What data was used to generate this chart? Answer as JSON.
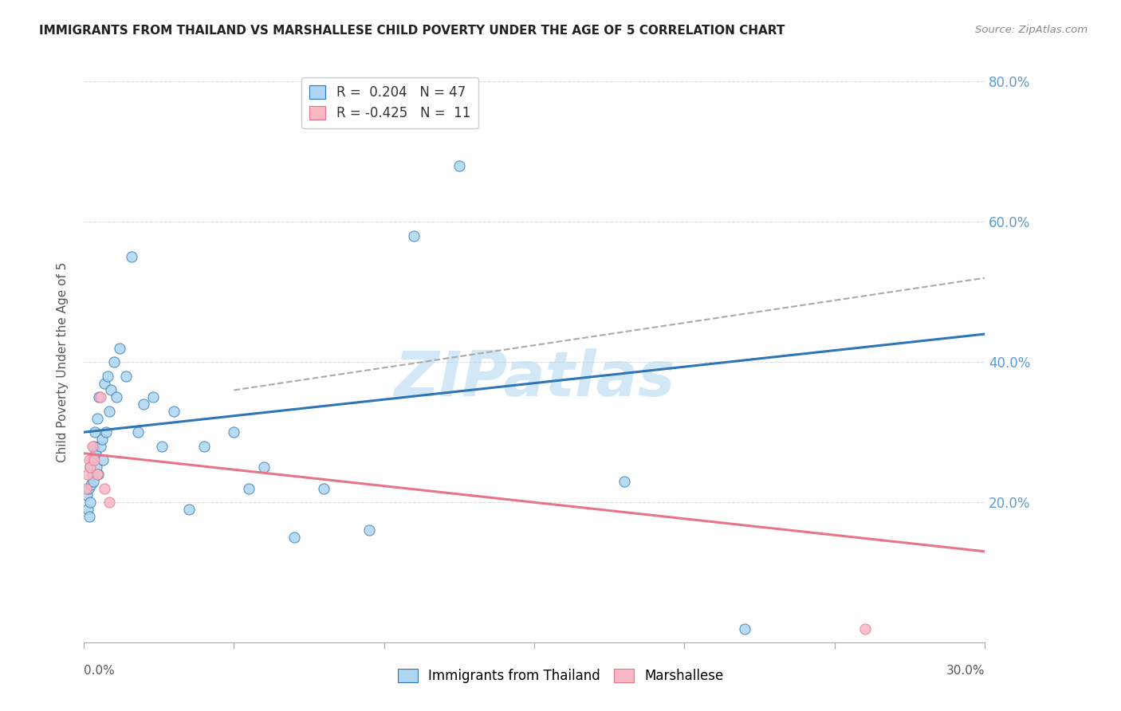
{
  "title": "IMMIGRANTS FROM THAILAND VS MARSHALLESE CHILD POVERTY UNDER THE AGE OF 5 CORRELATION CHART",
  "source": "Source: ZipAtlas.com",
  "ylabel": "Child Poverty Under the Age of 5",
  "legend_entry1": "R =  0.204   N = 47",
  "legend_entry2": "R = -0.425   N =  11",
  "legend_label1": "Immigrants from Thailand",
  "legend_label2": "Marshallese",
  "blue_scatter_color": "#AED6F1",
  "blue_line_color": "#2E75B6",
  "pink_scatter_color": "#F9B8C4",
  "pink_line_color": "#E8748A",
  "dashed_line_color": "#AAAAAA",
  "watermark_color": "#AED6F1",
  "background_color": "#FFFFFF",
  "grid_color": "#DDDDDD",
  "title_color": "#222222",
  "right_axis_color": "#5B9BD5",
  "xlim": [
    0.0,
    30.0
  ],
  "ylim": [
    0.0,
    80.0
  ],
  "thailand_x": [
    0.1,
    0.12,
    0.15,
    0.18,
    0.2,
    0.22,
    0.25,
    0.28,
    0.3,
    0.32,
    0.35,
    0.38,
    0.4,
    0.42,
    0.45,
    0.48,
    0.5,
    0.55,
    0.6,
    0.65,
    0.7,
    0.75,
    0.8,
    0.85,
    0.9,
    1.0,
    1.1,
    1.2,
    1.4,
    1.6,
    1.8,
    2.0,
    2.3,
    2.6,
    3.0,
    3.5,
    4.0,
    5.0,
    5.5,
    6.0,
    7.0,
    8.0,
    9.5,
    11.0,
    12.5,
    18.0,
    22.0
  ],
  "thailand_y": [
    21.0,
    19.0,
    22.0,
    18.0,
    25.0,
    20.0,
    22.5,
    24.0,
    26.0,
    23.0,
    28.0,
    30.0,
    27.0,
    25.0,
    32.0,
    24.0,
    35.0,
    28.0,
    29.0,
    26.0,
    37.0,
    30.0,
    38.0,
    33.0,
    36.0,
    40.0,
    35.0,
    42.0,
    38.0,
    55.0,
    30.0,
    34.0,
    35.0,
    28.0,
    33.0,
    19.0,
    28.0,
    30.0,
    22.0,
    25.0,
    15.0,
    22.0,
    16.0,
    58.0,
    68.0,
    23.0,
    2.0
  ],
  "marshallese_x": [
    0.08,
    0.12,
    0.18,
    0.22,
    0.28,
    0.35,
    0.45,
    0.55,
    0.7,
    0.85,
    26.0
  ],
  "marshallese_y": [
    22.0,
    24.0,
    26.0,
    25.0,
    28.0,
    26.0,
    24.0,
    35.0,
    22.0,
    20.0,
    2.0
  ],
  "blue_trendline_x0": 0.0,
  "blue_trendline_y0": 30.0,
  "blue_trendline_x1": 30.0,
  "blue_trendline_y1": 44.0,
  "pink_trendline_x0": 0.0,
  "pink_trendline_y0": 27.0,
  "pink_trendline_x1": 30.0,
  "pink_trendline_y1": 13.0,
  "dash_x0": 5.0,
  "dash_y0": 36.0,
  "dash_x1": 30.0,
  "dash_y1": 52.0
}
